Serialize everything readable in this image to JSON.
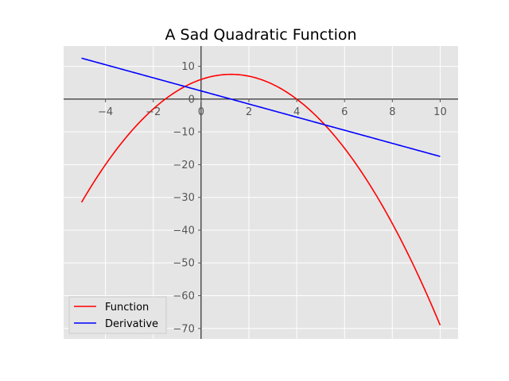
{
  "chart_data": {
    "type": "line",
    "title": "A Sad Quadratic Function",
    "xlabel": "",
    "ylabel": "",
    "xlim": [
      -5.75,
      10.75
    ],
    "ylim": [
      -73.2,
      16.2
    ],
    "xticks": [
      -4,
      -2,
      0,
      2,
      4,
      6,
      8,
      10
    ],
    "yticks": [
      10,
      0,
      -10,
      -20,
      -30,
      -40,
      -50,
      -60,
      -70
    ],
    "x_tick_labels": [
      "−4",
      "−2",
      "0",
      "2",
      "4",
      "6",
      "8",
      "10"
    ],
    "y_tick_labels": [
      "10",
      "0",
      "−10",
      "−20",
      "−30",
      "−40",
      "−50",
      "−60",
      "−70"
    ],
    "grid": true,
    "legend_position": "lower-left",
    "x_domain": [
      -5,
      10
    ],
    "series": [
      {
        "name": "Function",
        "color": "#ff0000",
        "formula": "-x^2 + 2.5x + 6",
        "coefficients": [
          -1,
          2.5,
          6
        ]
      },
      {
        "name": "Derivative",
        "color": "#0000ff",
        "formula": "-2x + 2.5",
        "coefficients": [
          0,
          -2,
          2.5
        ]
      }
    ],
    "colors": {
      "plot_background": "#e5e5e5",
      "grid": "#ffffff",
      "axis": "#000000",
      "tick_label": "#555555"
    }
  }
}
